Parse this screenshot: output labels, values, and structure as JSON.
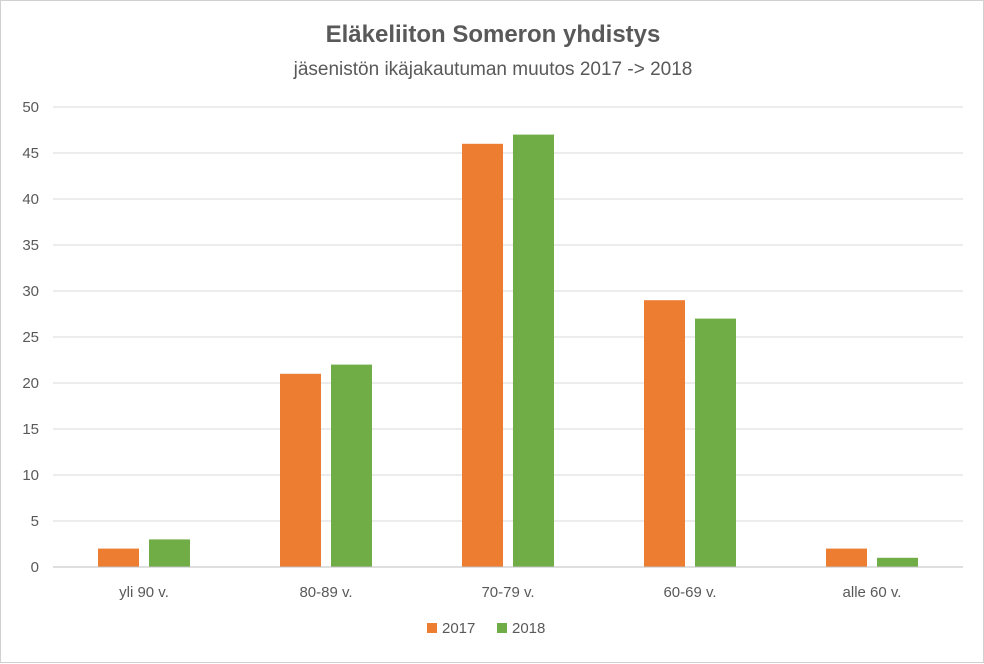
{
  "chart_data": {
    "type": "bar",
    "title": "Eläkeliiton Someron yhdistys",
    "subtitle": "jäsenistön ikäjakautuman muutos 2017 -> 2018",
    "categories": [
      "yli 90 v.",
      "80-89 v.",
      "70-79 v.",
      "60-69 v.",
      "alle 60 v."
    ],
    "series": [
      {
        "name": "2017",
        "color": "#ED7D31",
        "values": [
          2,
          21,
          46,
          29,
          2
        ]
      },
      {
        "name": "2018",
        "color": "#70AD47",
        "values": [
          3,
          22,
          47,
          27,
          1
        ]
      }
    ],
    "ylim": [
      0,
      50
    ],
    "yticks": [
      "0",
      "5",
      "10",
      "15",
      "20",
      "25",
      "30",
      "35",
      "40",
      "45",
      "50"
    ],
    "grid": true,
    "legend_position": "bottom",
    "gridline_color": "#d9d9d9",
    "axis_color": "#bfbfbf"
  }
}
